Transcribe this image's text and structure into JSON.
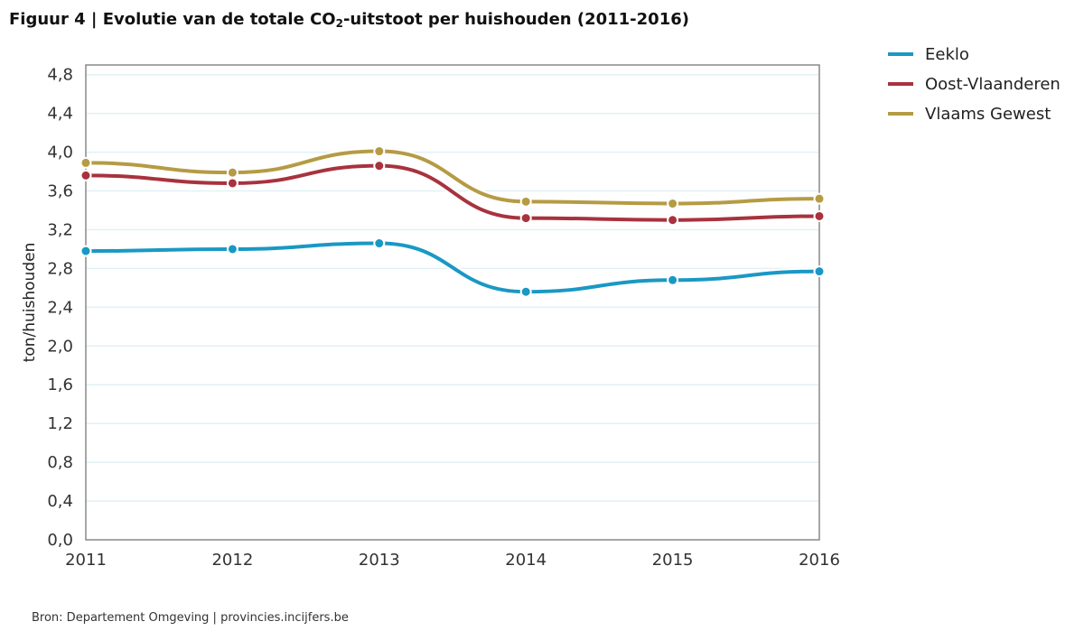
{
  "header": {
    "title_prefix": "Figuur 4 | Evolutie van de totale CO",
    "title_sub": "2",
    "title_suffix": "-uitstoot per huishouden (2011-2016)"
  },
  "source": "Bron: Departement Omgeving | provincies.incijfers.be",
  "chart_data": {
    "type": "line",
    "title": "Figuur 4 | Evolutie van de totale CO2-uitstoot per huishouden (2011-2016)",
    "xlabel": "",
    "ylabel": "ton/huishouden",
    "x": [
      "2011",
      "2012",
      "2013",
      "2014",
      "2015",
      "2016"
    ],
    "ylim": [
      0,
      4.9
    ],
    "yticks": [
      0,
      0.4,
      0.8,
      1.2,
      1.6,
      2.0,
      2.4,
      2.8,
      3.2,
      3.6,
      4.0,
      4.4,
      4.8
    ],
    "ytick_labels": [
      "0,0",
      "0,4",
      "0,8",
      "1,2",
      "1,6",
      "2,0",
      "2,4",
      "2,8",
      "3,2",
      "3,6",
      "4,0",
      "4,4",
      "4,8"
    ],
    "grid": true,
    "legend_position": "top-right, outside plot",
    "series": [
      {
        "name": "Eeklo",
        "color": "#1a98c4",
        "values": [
          2.98,
          3.0,
          3.06,
          2.56,
          2.68,
          2.77
        ]
      },
      {
        "name": "Oost-Vlaanderen",
        "color": "#a8323e",
        "values": [
          3.76,
          3.68,
          3.86,
          3.32,
          3.3,
          3.34
        ]
      },
      {
        "name": "Vlaams Gewest",
        "color": "#b59b44",
        "values": [
          3.89,
          3.79,
          4.01,
          3.49,
          3.47,
          3.52
        ]
      }
    ]
  }
}
